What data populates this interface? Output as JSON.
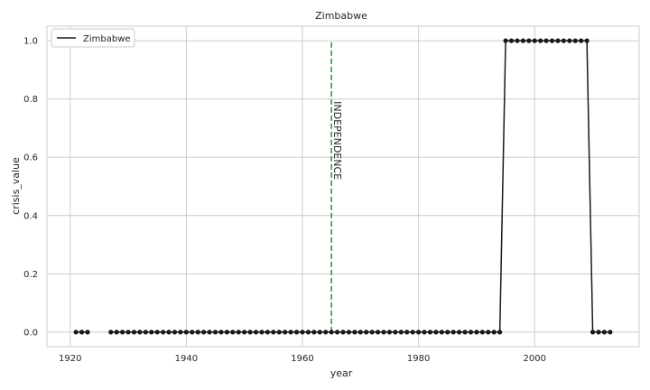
{
  "chart_data": {
    "type": "line",
    "title": "Zimbabwe",
    "xlabel": "year",
    "ylabel": "crisis_value",
    "xlim": [
      1916,
      2018
    ],
    "ylim": [
      -0.05,
      1.05
    ],
    "xticks": [
      1920,
      1940,
      1960,
      1980,
      2000
    ],
    "yticks": [
      0.0,
      0.2,
      0.4,
      0.6,
      0.8,
      1.0
    ],
    "xtick_labels": [
      "1920",
      "1940",
      "1960",
      "1980",
      "2000"
    ],
    "ytick_labels": [
      "0.0",
      "0.2",
      "0.4",
      "0.6",
      "0.8",
      "1.0"
    ],
    "grid": true,
    "legend_position": "top-left",
    "series": [
      {
        "name": "Zimbabwe",
        "color": "#1a1a1a",
        "marker": "circle",
        "segments": [
          {
            "x": [
              1921,
              1922,
              1923
            ],
            "y": [
              0,
              0,
              0
            ]
          },
          {
            "x": [
              1927,
              1928,
              1929,
              1930,
              1931,
              1932,
              1933,
              1934,
              1935,
              1936,
              1937,
              1938,
              1939,
              1940,
              1941,
              1942,
              1943,
              1944,
              1945,
              1946,
              1947,
              1948,
              1949,
              1950,
              1951,
              1952,
              1953,
              1954,
              1955,
              1956,
              1957,
              1958,
              1959,
              1960,
              1961,
              1962,
              1963,
              1964,
              1965,
              1966,
              1967,
              1968,
              1969,
              1970,
              1971,
              1972,
              1973,
              1974,
              1975,
              1976,
              1977,
              1978,
              1979,
              1980,
              1981,
              1982,
              1983,
              1984,
              1985,
              1986,
              1987,
              1988,
              1989,
              1990,
              1991,
              1992,
              1993,
              1994,
              1995,
              1996,
              1997,
              1998,
              1999,
              2000,
              2001,
              2002,
              2003,
              2004,
              2005,
              2006,
              2007,
              2008,
              2009,
              2010,
              2011,
              2012,
              2013
            ],
            "y": [
              0,
              0,
              0,
              0,
              0,
              0,
              0,
              0,
              0,
              0,
              0,
              0,
              0,
              0,
              0,
              0,
              0,
              0,
              0,
              0,
              0,
              0,
              0,
              0,
              0,
              0,
              0,
              0,
              0,
              0,
              0,
              0,
              0,
              0,
              0,
              0,
              0,
              0,
              0,
              0,
              0,
              0,
              0,
              0,
              0,
              0,
              0,
              0,
              0,
              0,
              0,
              0,
              0,
              0,
              0,
              0,
              0,
              0,
              0,
              0,
              0,
              0,
              0,
              0,
              0,
              0,
              0,
              0,
              1,
              1,
              1,
              1,
              1,
              1,
              1,
              1,
              1,
              1,
              1,
              1,
              1,
              1,
              1,
              0,
              0,
              0,
              0
            ]
          }
        ]
      }
    ],
    "annotations": [
      {
        "type": "vline",
        "x": 1965,
        "y_from": 0.0,
        "y_to": 1.0,
        "color": "#2e8b3e",
        "style": "dashed",
        "label": "INDEPENDENCE"
      }
    ]
  }
}
